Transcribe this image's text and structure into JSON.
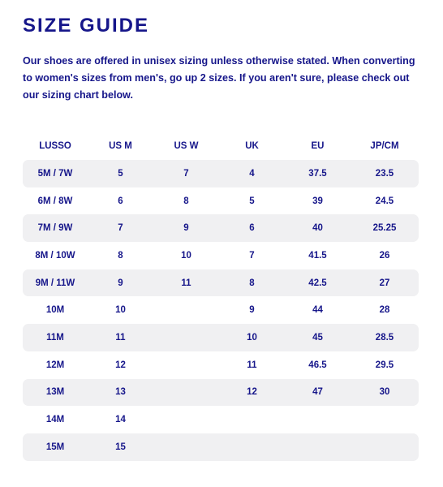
{
  "page": {
    "title": "SIZE GUIDE",
    "intro": "Our shoes are offered in unisex sizing unless otherwise stated. When converting to women's sizes from men's, go up 2 sizes. If you aren't sure, please check out our sizing chart below."
  },
  "colors": {
    "text": "#16168a",
    "row_shade": "#f0f0f2",
    "background": "#ffffff"
  },
  "table": {
    "headers": [
      "LUSSO",
      "US M",
      "US W",
      "UK",
      "EU",
      "JP/CM"
    ],
    "rows": [
      [
        "5M / 7W",
        "5",
        "7",
        "4",
        "37.5",
        "23.5"
      ],
      [
        "6M / 8W",
        "6",
        "8",
        "5",
        "39",
        "24.5"
      ],
      [
        "7M / 9W",
        "7",
        "9",
        "6",
        "40",
        "25.25"
      ],
      [
        "8M / 10W",
        "8",
        "10",
        "7",
        "41.5",
        "26"
      ],
      [
        "9M / 11W",
        "9",
        "11",
        "8",
        "42.5",
        "27"
      ],
      [
        "10M",
        "10",
        "",
        "9",
        "44",
        "28"
      ],
      [
        "11M",
        "11",
        "",
        "10",
        "45",
        "28.5"
      ],
      [
        "12M",
        "12",
        "",
        "11",
        "46.5",
        "29.5"
      ],
      [
        "13M",
        "13",
        "",
        "12",
        "47",
        "30"
      ],
      [
        "14M",
        "14",
        "",
        "",
        "",
        ""
      ],
      [
        "15M",
        "15",
        "",
        "",
        "",
        ""
      ]
    ]
  }
}
